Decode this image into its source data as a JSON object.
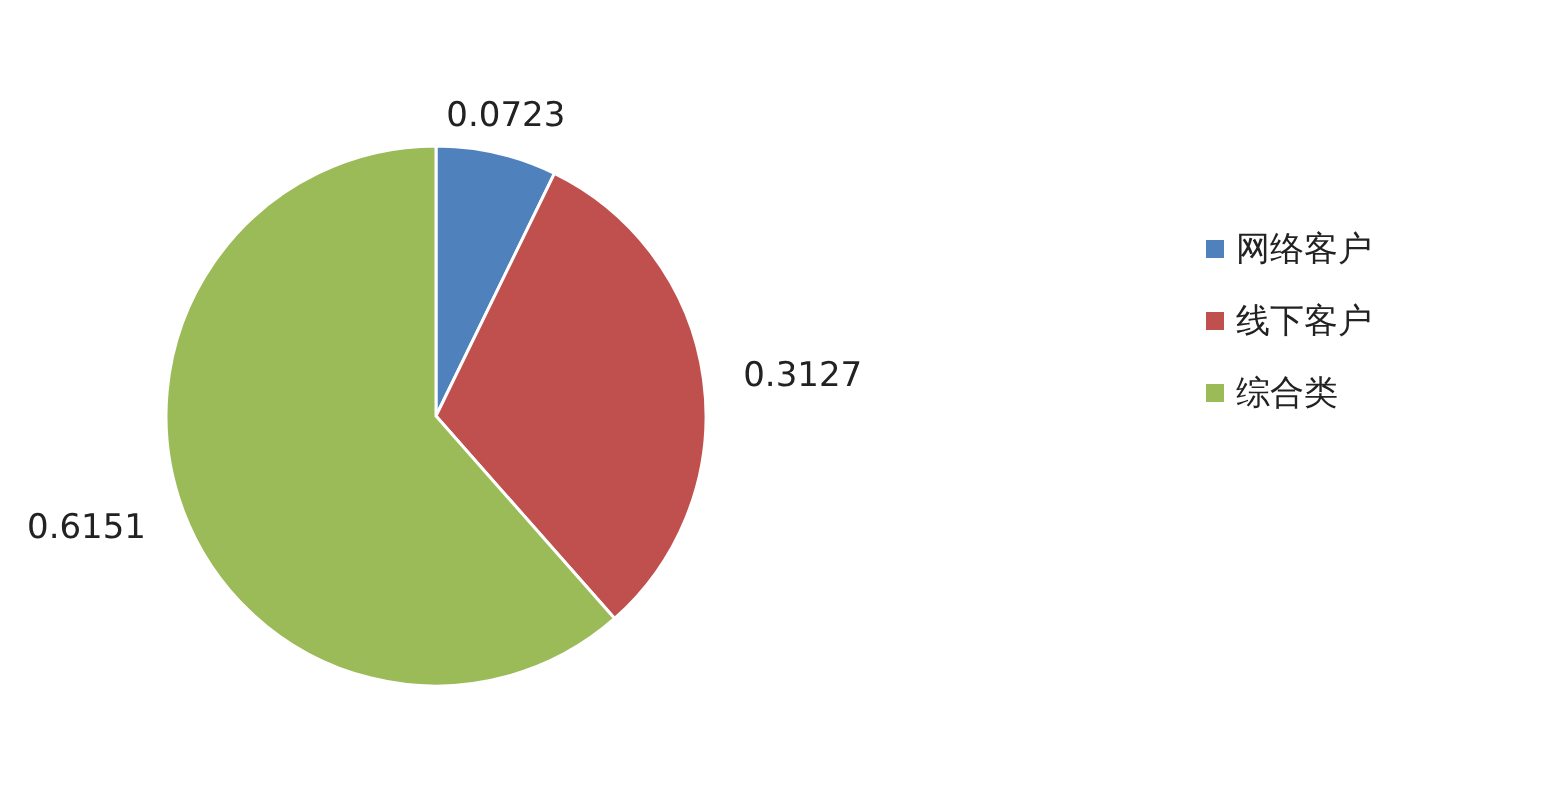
{
  "chart_data": {
    "type": "pie",
    "categories": [
      "网络客户",
      "线下客户",
      "综合类"
    ],
    "values": [
      0.0723,
      0.3127,
      0.6151
    ],
    "colors": [
      "#4f81bd",
      "#c0504d",
      "#9bbb59"
    ],
    "data_labels": true,
    "legend": "right"
  }
}
